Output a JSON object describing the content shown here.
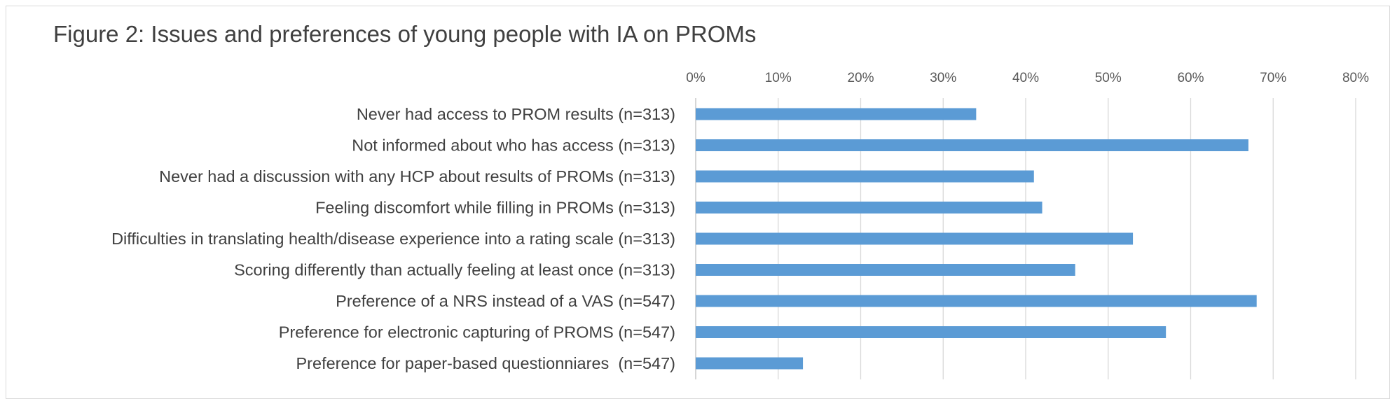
{
  "chart_data": {
    "type": "bar",
    "orientation": "horizontal",
    "title": "Figure 2: Issues and preferences of young people with IA on PROMs",
    "xlabel": "",
    "ylabel": "",
    "xlim": [
      0,
      80
    ],
    "tick_values": [
      0,
      10,
      20,
      30,
      40,
      50,
      60,
      70,
      80
    ],
    "tick_labels": [
      "0%",
      "10%",
      "20%",
      "30%",
      "40%",
      "50%",
      "60%",
      "70%",
      "80%"
    ],
    "grid": true,
    "legend": "none",
    "bar_color": "#5b9bd5",
    "categories": [
      "Never had access to PROM results (n=313)",
      "Not informed about who has access (n=313)",
      "Never had a discussion with any HCP about results of PROMs (n=313)",
      "Feeling discomfort while filling in PROMs (n=313)",
      "Difficulties in translating health/disease experience into a rating scale (n=313)",
      "Scoring differently than actually feeling at least once (n=313)",
      "Preference of a NRS instead of a VAS (n=547)",
      "Preference for electronic capturing of PROMS (n=547)",
      "Preference for paper-based questionniares  (n=547)"
    ],
    "values": [
      34,
      67,
      41,
      42,
      53,
      46,
      68,
      57,
      13
    ]
  }
}
